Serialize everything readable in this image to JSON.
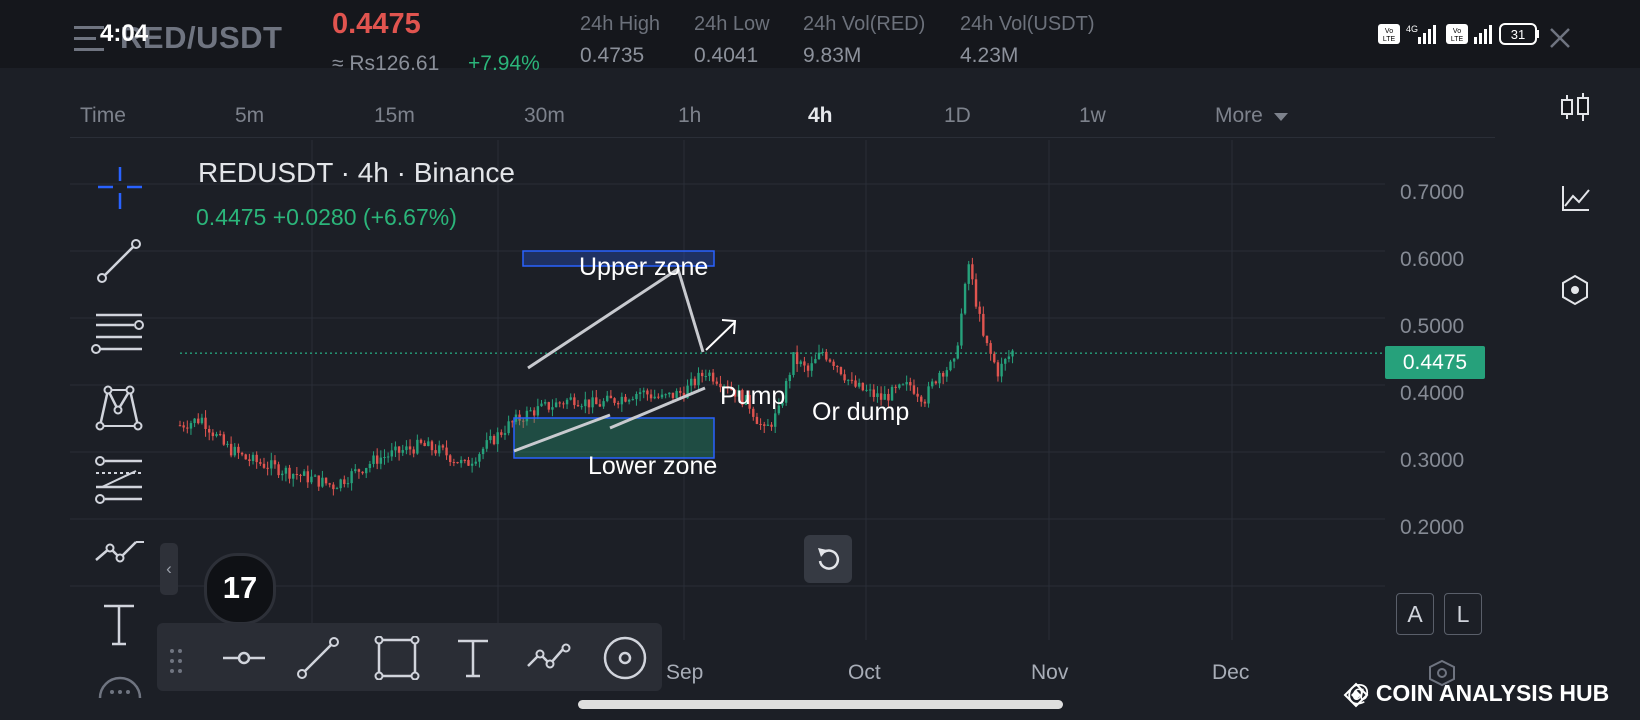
{
  "status_bar": {
    "time": "4:04",
    "battery": "31",
    "net": "4G"
  },
  "header": {
    "pair": "RED/USDT",
    "last_price": "0.4475",
    "fiat_price": "≈ Rs126.61",
    "change_pct": "+7.94%",
    "stats": [
      {
        "label": "24h High",
        "value": "0.4735"
      },
      {
        "label": "24h Low",
        "value": "0.4041"
      },
      {
        "label": "24h Vol(RED)",
        "value": "9.83M"
      },
      {
        "label": "24h Vol(USDT)",
        "value": "4.23M"
      }
    ]
  },
  "timeframes": [
    "Time",
    "5m",
    "15m",
    "30m",
    "1h",
    "4h",
    "1D",
    "1w",
    "More"
  ],
  "active_timeframe": "4h",
  "chart": {
    "title": "REDUSDT · 4h · Binance",
    "ohlc_line": "0.4475  +0.0280 (+6.67%)",
    "current_price_tag": "0.4475",
    "annotations": {
      "upper_zone": "Upper zone",
      "lower_zone": "Lower zone",
      "pump": "Pump",
      "dump": "Or dump"
    }
  },
  "side_buttons": {
    "a": "A",
    "l": "L"
  },
  "watermark": "@ COIN ANALYSIS HUB",
  "colors": {
    "up": "#26a17b",
    "down": "#e0544f",
    "background": "#1c1f26",
    "zone": "#2962ff"
  },
  "chart_data": {
    "type": "line",
    "title": "REDUSDT · 4h · Binance",
    "x_ticks": [
      "Sep",
      "Oct",
      "Nov",
      "Dec"
    ],
    "y_ticks": [
      "0.7000",
      "0.6000",
      "0.5000",
      "0.4000",
      "0.3000",
      "0.2000"
    ],
    "ylim": [
      0.15,
      0.72
    ],
    "x_range_days": [
      0,
      165
    ],
    "series": [
      {
        "x": [
          0,
          3,
          6,
          9,
          12,
          15,
          18,
          21,
          24,
          27,
          30,
          33,
          36,
          39,
          42,
          45,
          48,
          51,
          54,
          57,
          60,
          63,
          66,
          69,
          72,
          75,
          78,
          80,
          82,
          84,
          86,
          88,
          90,
          92,
          94,
          96,
          98,
          100,
          102,
          104,
          106,
          108,
          110,
          112,
          114
        ],
        "values": [
          0.34,
          0.35,
          0.31,
          0.29,
          0.28,
          0.27,
          0.26,
          0.25,
          0.27,
          0.29,
          0.3,
          0.31,
          0.3,
          0.28,
          0.31,
          0.34,
          0.36,
          0.37,
          0.38,
          0.37,
          0.38,
          0.39,
          0.38,
          0.39,
          0.42,
          0.4,
          0.37,
          0.33,
          0.36,
          0.44,
          0.42,
          0.45,
          0.43,
          0.4,
          0.39,
          0.38,
          0.39,
          0.4,
          0.38,
          0.42,
          0.43,
          0.58,
          0.47,
          0.42,
          0.45
        ]
      }
    ],
    "grid": true
  }
}
